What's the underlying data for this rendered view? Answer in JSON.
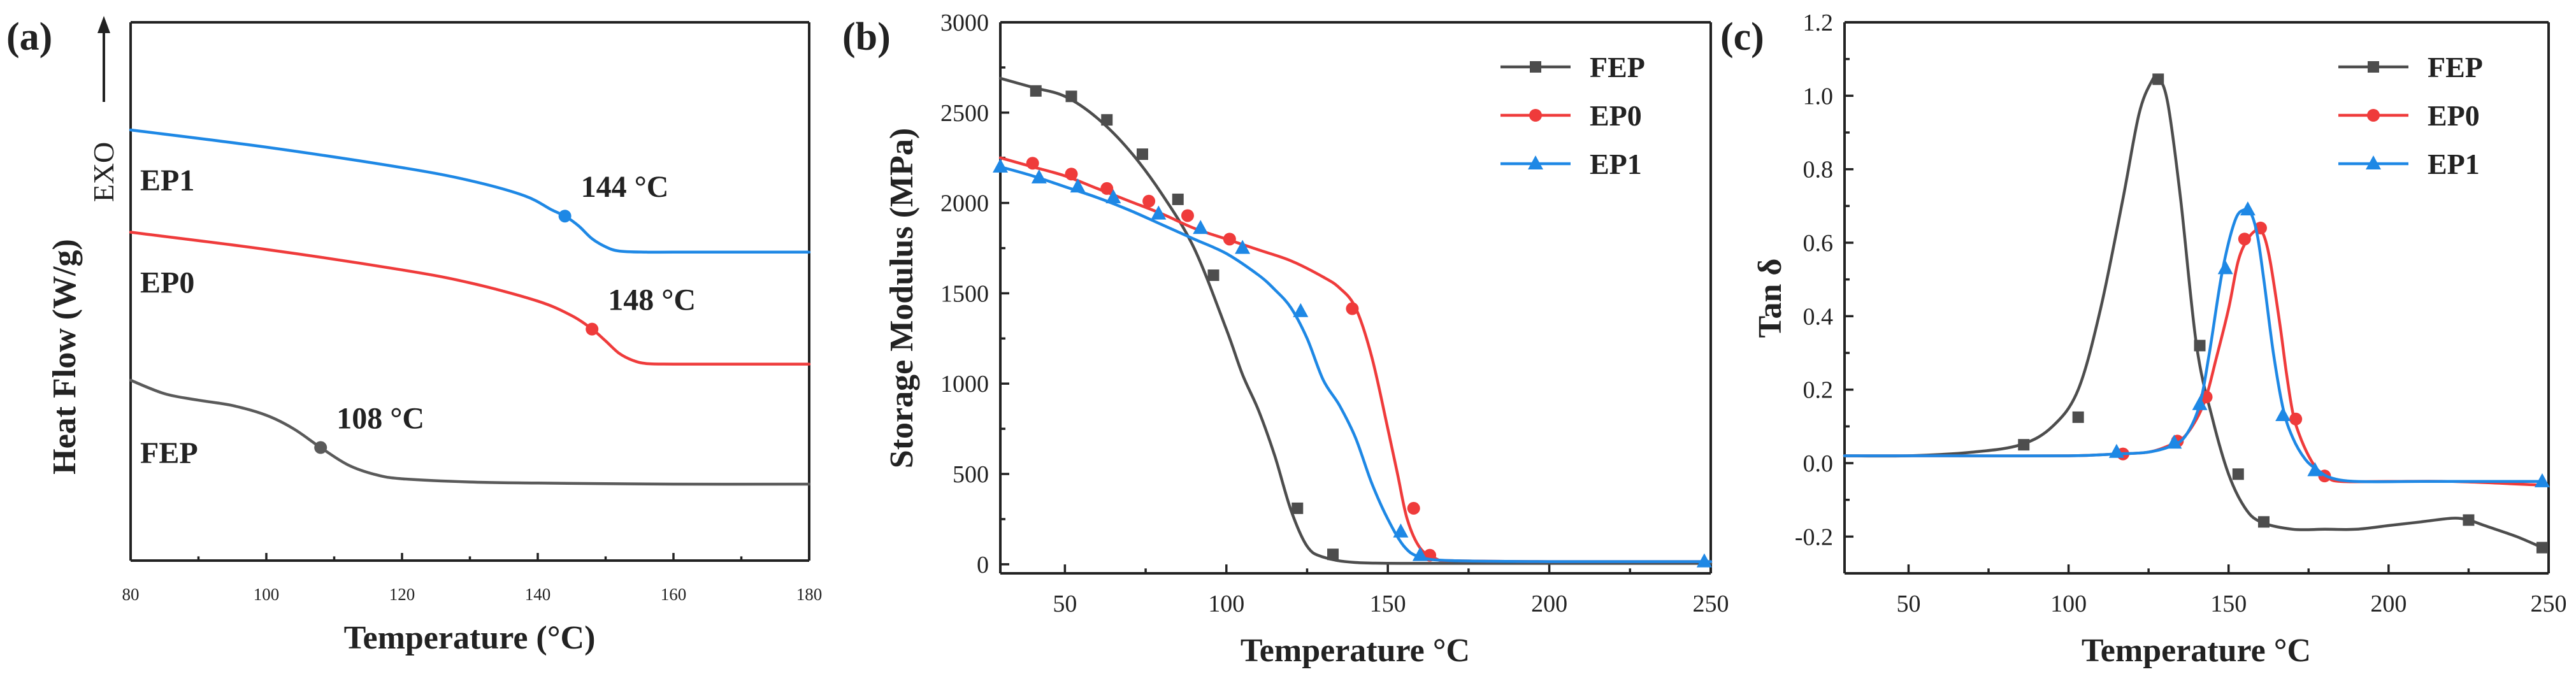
{
  "chart_data": [
    {
      "panel": "(a)",
      "type": "line",
      "title": "",
      "xlabel": "Temperature (°C)",
      "ylabel": "Heat Flow (W/g)",
      "exo_label": "EXO",
      "xlim": [
        80,
        180
      ],
      "xticks": [
        "80",
        "100",
        "120",
        "140",
        "160",
        "180"
      ],
      "ylim": [
        0,
        10
      ],
      "y_tick_labels": false,
      "grid": false,
      "series": [
        {
          "name": "EP1",
          "color": "#1e88e5",
          "x": [
            80,
            100,
            120,
            130,
            138,
            142,
            144,
            146,
            148,
            150,
            152,
            156,
            160,
            170,
            180
          ],
          "y": [
            8.0,
            7.68,
            7.3,
            7.06,
            6.78,
            6.52,
            6.4,
            6.22,
            5.98,
            5.83,
            5.75,
            5.73,
            5.73,
            5.73,
            5.73
          ],
          "annotation": {
            "text": "144 °C",
            "x": 144,
            "y": 6.4
          }
        },
        {
          "name": "EP0",
          "color": "#ef3b3b",
          "x": [
            80,
            100,
            120,
            130,
            140,
            145,
            148,
            150,
            152,
            154,
            156,
            160,
            170,
            180
          ],
          "y": [
            6.1,
            5.78,
            5.4,
            5.16,
            4.82,
            4.55,
            4.3,
            4.08,
            3.85,
            3.72,
            3.66,
            3.65,
            3.65,
            3.65
          ],
          "annotation": {
            "text": "148 °C",
            "x": 148,
            "y": 4.3
          }
        },
        {
          "name": "FEP",
          "color": "#5a5a5a",
          "x": [
            80,
            85,
            90,
            95,
            100,
            104,
            108,
            112,
            116,
            120,
            130,
            140,
            160,
            180
          ],
          "y": [
            3.35,
            3.1,
            2.98,
            2.88,
            2.7,
            2.45,
            2.1,
            1.78,
            1.6,
            1.52,
            1.46,
            1.44,
            1.42,
            1.42
          ],
          "annotation": {
            "text": "108 °C",
            "x": 108,
            "y": 2.1
          }
        }
      ]
    },
    {
      "panel": "(b)",
      "type": "line",
      "title": "",
      "xlabel": "Temperature °C",
      "ylabel": "Storage Modulus (MPa)",
      "xlim": [
        30,
        250
      ],
      "ylim": [
        -50,
        3000
      ],
      "xticks": [
        "50",
        "100",
        "150",
        "200",
        "250"
      ],
      "yticks": [
        "0",
        "500",
        "1000",
        "1500",
        "2000",
        "2500",
        "3000"
      ],
      "grid": false,
      "legend": "top-right",
      "series": [
        {
          "name": "FEP",
          "color": "#4d4d4d",
          "marker": "square",
          "x": [
            30,
            40,
            50,
            60,
            70,
            80,
            90,
            100,
            105,
            110,
            115,
            120,
            125,
            130,
            140,
            160,
            200,
            250
          ],
          "y": [
            2690,
            2640,
            2590,
            2470,
            2290,
            2050,
            1750,
            1300,
            1050,
            850,
            600,
            300,
            100,
            40,
            10,
            5,
            5,
            5
          ],
          "markers_x": [
            41,
            52,
            63,
            74,
            85,
            96,
            122,
            133
          ],
          "markers_y": [
            2620,
            2590,
            2460,
            2270,
            2020,
            1600,
            310,
            55
          ]
        },
        {
          "name": "EP0",
          "color": "#ef3b3b",
          "marker": "circle",
          "x": [
            30,
            40,
            50,
            60,
            70,
            80,
            90,
            100,
            110,
            120,
            130,
            135,
            140,
            145,
            150,
            153,
            156,
            160,
            165,
            170,
            200,
            250
          ],
          "y": [
            2250,
            2200,
            2150,
            2080,
            2010,
            1940,
            1860,
            1800,
            1740,
            1680,
            1590,
            1530,
            1420,
            1150,
            750,
            500,
            250,
            90,
            30,
            20,
            15,
            15
          ],
          "markers_x": [
            40,
            52,
            63,
            76,
            88,
            101,
            139,
            158,
            163
          ],
          "markers_y": [
            2220,
            2160,
            2080,
            2010,
            1930,
            1800,
            1415,
            310,
            50
          ]
        },
        {
          "name": "EP1",
          "color": "#1e88e5",
          "marker": "triangle",
          "x": [
            30,
            40,
            50,
            60,
            70,
            80,
            90,
            100,
            110,
            115,
            120,
            125,
            130,
            135,
            140,
            145,
            150,
            155,
            160,
            170,
            200,
            250
          ],
          "y": [
            2200,
            2150,
            2090,
            2030,
            1960,
            1880,
            1800,
            1720,
            1600,
            1520,
            1420,
            1250,
            1020,
            880,
            700,
            450,
            250,
            100,
            40,
            20,
            15,
            15
          ],
          "markers_x": [
            30,
            42,
            54,
            65,
            79,
            92,
            105,
            123,
            154,
            160,
            248
          ],
          "markers_y": [
            2200,
            2140,
            2090,
            2030,
            1940,
            1860,
            1750,
            1400,
            180,
            50,
            15
          ]
        }
      ]
    },
    {
      "panel": "(c)",
      "type": "line",
      "title": "",
      "xlabel": "Temperature °C",
      "ylabel": "Tan δ",
      "xlim": [
        30,
        250
      ],
      "ylim": [
        -0.3,
        1.2
      ],
      "xticks": [
        "50",
        "100",
        "150",
        "200",
        "250"
      ],
      "yticks": [
        "-0.2",
        "0.0",
        "0.2",
        "0.4",
        "0.6",
        "0.8",
        "1.0",
        "1.2"
      ],
      "grid": false,
      "legend": "top-right",
      "series": [
        {
          "name": "FEP",
          "color": "#4d4d4d",
          "marker": "square",
          "x": [
            30,
            50,
            70,
            85,
            95,
            103,
            110,
            117,
            122,
            126,
            128,
            131,
            135,
            140,
            145,
            150,
            155,
            160,
            170,
            180,
            190,
            200,
            210,
            220,
            225,
            230,
            240,
            248
          ],
          "y": [
            0.02,
            0.02,
            0.03,
            0.05,
            0.1,
            0.2,
            0.42,
            0.72,
            0.95,
            1.04,
            1.05,
            0.98,
            0.72,
            0.32,
            0.12,
            -0.03,
            -0.12,
            -0.16,
            -0.18,
            -0.18,
            -0.18,
            -0.17,
            -0.16,
            -0.15,
            -0.155,
            -0.17,
            -0.2,
            -0.23
          ],
          "markers_x": [
            86,
            103,
            128,
            141,
            153,
            161,
            225,
            248
          ],
          "markers_y": [
            0.05,
            0.125,
            1.045,
            0.32,
            -0.03,
            -0.16,
            -0.155,
            -0.23
          ]
        },
        {
          "name": "EP0",
          "color": "#ef3b3b",
          "marker": "circle",
          "x": [
            30,
            60,
            100,
            115,
            125,
            132,
            136,
            140,
            143,
            146,
            150,
            153,
            156,
            159,
            161,
            163,
            166,
            168,
            170,
            172,
            175,
            178,
            181,
            185,
            200,
            220,
            248
          ],
          "y": [
            0.02,
            0.02,
            0.02,
            0.025,
            0.03,
            0.05,
            0.07,
            0.12,
            0.18,
            0.28,
            0.42,
            0.55,
            0.61,
            0.635,
            0.62,
            0.55,
            0.38,
            0.25,
            0.14,
            0.08,
            0.02,
            -0.02,
            -0.04,
            -0.05,
            -0.05,
            -0.05,
            -0.06
          ],
          "markers_x": [
            117,
            134,
            143,
            155,
            160,
            171,
            180
          ],
          "markers_y": [
            0.025,
            0.06,
            0.18,
            0.61,
            0.64,
            0.12,
            -0.035
          ]
        },
        {
          "name": "EP1",
          "color": "#1e88e5",
          "marker": "triangle",
          "x": [
            30,
            60,
            100,
            115,
            125,
            133,
            137,
            141,
            144,
            148,
            152,
            155,
            157,
            159,
            161,
            164,
            167,
            170,
            174,
            178,
            182,
            190,
            210,
            230,
            248
          ],
          "y": [
            0.02,
            0.02,
            0.02,
            0.025,
            0.03,
            0.05,
            0.08,
            0.16,
            0.3,
            0.52,
            0.66,
            0.69,
            0.68,
            0.62,
            0.5,
            0.3,
            0.15,
            0.07,
            0.01,
            -0.02,
            -0.04,
            -0.05,
            -0.05,
            -0.05,
            -0.05
          ],
          "markers_x": [
            115,
            133,
            141,
            149,
            156,
            167,
            177,
            248
          ],
          "markers_y": [
            0.03,
            0.055,
            0.16,
            0.53,
            0.69,
            0.13,
            -0.02,
            -0.05
          ]
        }
      ]
    }
  ]
}
